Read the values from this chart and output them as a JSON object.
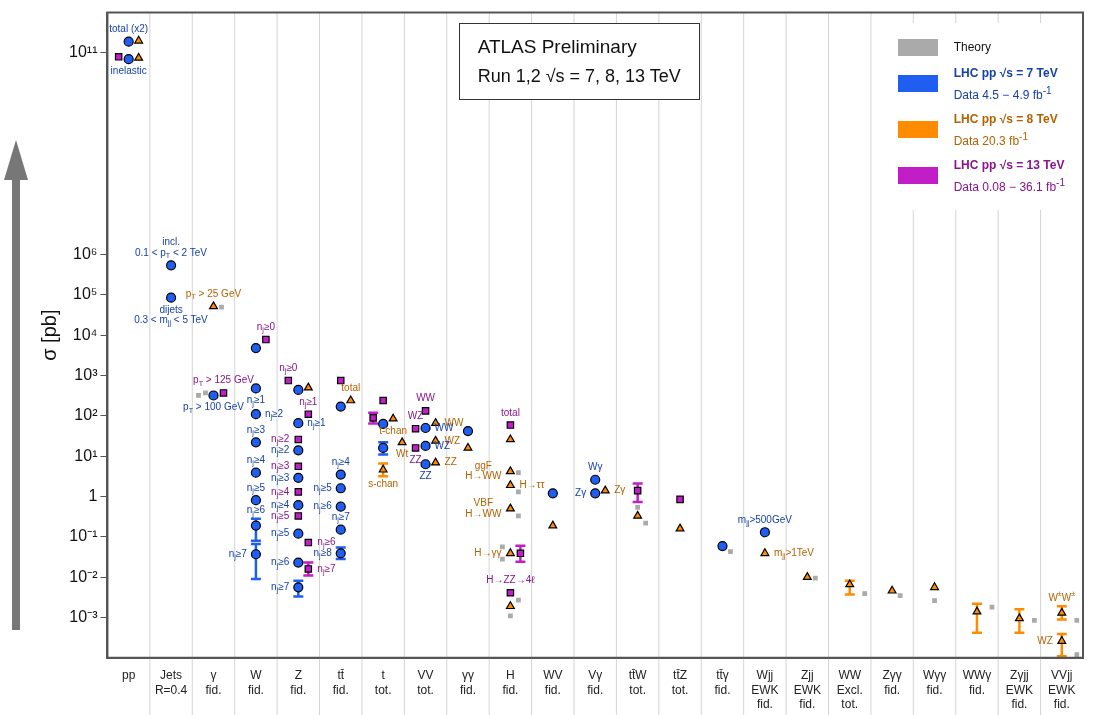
{
  "chart_data": {
    "type": "scatter",
    "title": "ATLAS Preliminary",
    "subtitle": "Run 1,2   √s = 7, 8, 13 TeV",
    "ylabel": "σ [pb]",
    "categories": [
      "pp",
      "Jets\nR=0.4",
      "γ\nfid.",
      "W\nfid.",
      "Z\nfid.",
      "tt̄\nfid.",
      "t\ntot.",
      "VV\ntot.",
      "γγ\nfid.",
      "H\nfid.",
      "WV\nfid.",
      "Vγ\nfid.",
      "tt̄W\ntot.",
      "tt̄Z\ntot.",
      "tt̄γ\nfid.",
      "Wjj\nEWK\nfid.",
      "Zjj\nEWK\nfid.",
      "WW\nExcl.\ntot.",
      "Zγγ\nfid.",
      "Wγγ\nfid.",
      "WWγ\nfid.",
      "Zγjj\nEWK\nfid.",
      "VVjj\nEWK\nfid."
    ],
    "log": "y",
    "ylim": [
      0.0001,
      1000000000000
    ],
    "yticks": [
      {
        "value": 0.001,
        "label": "10⁻³"
      },
      {
        "value": 0.01,
        "label": "10⁻²"
      },
      {
        "value": 0.1,
        "label": "10⁻¹"
      },
      1,
      {
        "value": 10,
        "label": "10¹"
      },
      {
        "value": 100,
        "label": "10²"
      },
      {
        "value": 1000,
        "label": "10³"
      },
      {
        "value": 10000,
        "label": "10⁴"
      },
      {
        "value": 100000,
        "label": "10⁵"
      },
      {
        "value": 1000000,
        "label": "10⁶"
      },
      {
        "value": 100000000000,
        "label": "10¹¹"
      }
    ],
    "grid": "x",
    "legend": "top right",
    "series": [
      {
        "name": "Theory",
        "marker": "square",
        "color": "#aaaaaa",
        "x": [
          "γ\nfid.",
          "γ\nfid.",
          "γ\nfid.",
          "H\nfid.",
          "H\nfid.",
          "H\nfid.",
          "H\nfid.",
          "H\nfid.",
          "H\nfid.",
          "H\nfid.",
          "tt̄W\ntot.",
          "tt̄W\ntot.",
          "tt̄γ\nfid.",
          "Zjj\nEWK\nfid.",
          "WW\nExcl.\ntot.",
          "Zγγ\nfid.",
          "Wγγ\nfid.",
          "WWγ\nfid.",
          "Zγjj\nEWK\nfid.",
          "VVjj\nEWK\nfid.",
          "VVjj\nEWK\nfid."
        ],
        "values": [
          50000,
          370,
          320,
          3.9,
          1.3,
          0.33,
          0.056,
          0.028,
          0.0027,
          0.0011,
          0.54,
          0.22,
          0.043,
          0.0095,
          0.0039,
          0.0035,
          0.0026,
          0.0018,
          0.00085,
          0.00085,
          0.00012
        ]
      },
      {
        "name": "LHC pp √s = 7 TeV\nData 4.5 − 4.9 fb$^{-1}$",
        "marker": "circle",
        "color": "#1f5ef0",
        "x": [
          "pp",
          "pp",
          "Jets\nR=0.4",
          "Jets\nR=0.4",
          "γ\nfid.",
          "W\nfid.",
          "W\nfid.",
          "W\nfid.",
          "W\nfid.",
          "W\nfid.",
          "W\nfid.",
          "W\nfid.",
          "W\nfid.",
          "Z\nfid.",
          "Z\nfid.",
          "Z\nfid.",
          "Z\nfid.",
          "Z\nfid.",
          "Z\nfid.",
          "Z\nfid.",
          "Z\nfid.",
          "tt̄\nfid.",
          "tt̄\nfid.",
          "tt̄\nfid.",
          "tt̄\nfid.",
          "tt̄\nfid.",
          "tt̄\nfid.",
          "t\ntot.",
          "t\ntot.",
          "VV\ntot.",
          "VV\ntot.",
          "VV\ntot.",
          "γγ\nfid.",
          "WV\nfid.",
          "Vγ\nfid.",
          "Vγ\nfid.",
          "tt̄γ\nfid.",
          "Wjj\nEWK\nfid."
        ],
        "values": [
          190000000000,
          70000000000,
          540000,
          85000,
          320,
          4800,
          480,
          110,
          22,
          3.9,
          0.81,
          0.19,
          0.037,
          440,
          66,
          14,
          2.9,
          0.61,
          0.12,
          0.023,
          0.0056,
          170,
          3.5,
          1.6,
          0.56,
          0.15,
          0.039,
          63,
          16,
          50,
          18,
          6.3,
          42,
          1.2,
          2.6,
          1.2,
          0.059,
          0.13
        ],
        "errors": [
          null,
          null,
          null,
          null,
          null,
          null,
          null,
          null,
          null,
          null,
          null,
          [
            0.08,
            0.28
          ],
          [
            0.009,
            0.066
          ],
          null,
          null,
          null,
          null,
          null,
          null,
          null,
          [
            0.0033,
            0.0081
          ],
          null,
          null,
          null,
          null,
          null,
          [
            0.028,
            0.054
          ],
          null,
          [
            11,
            22
          ],
          null,
          null,
          null,
          null,
          null,
          null,
          null,
          null,
          null
        ]
      },
      {
        "name": "LHC pp √s = 8 TeV\nData 20.3 fb$^{-1}$",
        "marker": "triangle",
        "color": "#ff8c00",
        "x": [
          "pp",
          "pp",
          "γ\nfid.",
          "Z\nfid.",
          "tt̄\nfid.",
          "t\ntot.",
          "t\ntot.",
          "t\ntot.",
          "VV\ntot.",
          "VV\ntot.",
          "VV\ntot.",
          "γγ\nfid.",
          "H\nfid.",
          "H\nfid.",
          "H\nfid.",
          "H\nfid.",
          "H\nfid.",
          "H\nfid.",
          "WV\nfid.",
          "Vγ\nfid.",
          "tt̄W\ntot.",
          "tt̄Z\ntot.",
          "Wjj\nEWK\nfid.",
          "Zjj\nEWK\nfid.",
          "WW\nExcl.\ntot.",
          "Zγγ\nfid.",
          "Wγγ\nfid.",
          "WWγ\nfid.",
          "Zγjj\nEWK\nfid.",
          "VVjj\nEWK\nfid.",
          "VVjj\nEWK\nfid."
        ],
        "values": [
          200000000000,
          75000000000,
          52000,
          500,
          240,
          85,
          22,
          4.6,
          66,
          24,
          6.9,
          16,
          26,
          4.2,
          1.9,
          0.5,
          0.039,
          0.0019,
          0.19,
          1.4,
          0.33,
          0.16,
          0.039,
          0.01,
          0.0066,
          0.0046,
          0.0056,
          0.0014,
          0.00095,
          0.0013,
          0.00026
        ],
        "errors": [
          null,
          null,
          null,
          null,
          null,
          null,
          null,
          [
            3.2,
            6.6
          ],
          null,
          null,
          null,
          null,
          null,
          null,
          null,
          null,
          null,
          null,
          null,
          null,
          null,
          null,
          null,
          null,
          [
            0.0037,
            0.0081
          ],
          null,
          null,
          [
            0.00042,
            0.0022
          ],
          [
            0.00042,
            0.0016
          ],
          [
            0.00089,
            0.0019
          ],
          [
            0.00011,
            0.00039
          ]
        ]
      },
      {
        "name": "LHC pp √s = 13 TeV\nData 0.08 − 36.1 fb$^{-1}$",
        "marker": "square",
        "color": "#c21ec8",
        "x": [
          "pp",
          "γ\nfid.",
          "W\nfid.",
          "Z\nfid.",
          "Z\nfid.",
          "Z\nfid.",
          "Z\nfid.",
          "Z\nfid.",
          "Z\nfid.",
          "Z\nfid.",
          "Z\nfid.",
          "tt̄\nfid.",
          "t\ntot.",
          "t\ntot.",
          "VV\ntot.",
          "VV\ntot.",
          "VV\ntot.",
          "H\nfid.",
          "H\nfid.",
          "H\nfid.",
          "tt̄W\ntot.",
          "tt̄Z\ntot."
        ],
        "values": [
          80000000000,
          370,
          7800,
          750,
          110,
          26,
          5.6,
          1.3,
          0.33,
          0.072,
          0.016,
          750,
          240,
          89,
          133,
          48,
          16,
          59,
          0.039,
          0.0041,
          1.4,
          0.85
        ],
        "errors": [
          null,
          null,
          null,
          null,
          null,
          null,
          null,
          null,
          null,
          null,
          [
            0.011,
            0.023
          ],
          null,
          null,
          [
            65,
            120
          ],
          null,
          null,
          null,
          null,
          [
            0.024,
            0.06
          ],
          null,
          [
            0.73,
            2.1
          ],
          null
        ]
      }
    ],
    "annotations": [
      {
        "text": "total (x2)",
        "x": "pp",
        "y": 190000000000
      },
      {
        "text": "inelastic",
        "x": "pp",
        "y": 70000000000
      },
      {
        "text": "incl.\n0.1 < p$_{T}$ < 2 TeV",
        "x": "Jets\nR=0.4",
        "y": 540000
      },
      {
        "text": "dijets\n0.3 < m$_{jj}$ < 5 TeV",
        "x": "Jets\nR=0.4",
        "y": 85000
      },
      {
        "text": "p$_{T}$ > 25 GeV",
        "x": "γ\nfid.",
        "y": 52000
      },
      {
        "text": "p$_{T}$ > 125 GeV",
        "x": "γ\nfid.",
        "y": 370
      },
      {
        "text": "p$_{T}$ > 100 GeV",
        "x": "γ\nfid.",
        "y": 320
      },
      {
        "text": "n$_{j}$≥0",
        "x": "W\nfid.",
        "y": 7800
      },
      {
        "text": "n$_{j}$≥1",
        "x": "W\nfid.",
        "y": 480
      },
      {
        "text": "n$_{j}$≥2",
        "x": "W\nfid.",
        "y": 110
      },
      {
        "text": "n$_{j}$≥3",
        "x": "W\nfid.",
        "y": 22
      },
      {
        "text": "n$_{j}$≥4",
        "x": "W\nfid.",
        "y": 3.9
      },
      {
        "text": "n$_{j}$≥5",
        "x": "W\nfid.",
        "y": 0.81
      },
      {
        "text": "n$_{j}$≥6",
        "x": "W\nfid.",
        "y": 0.19
      },
      {
        "text": "n$_{j}$≥7",
        "x": "W\nfid.",
        "y": 0.037
      },
      {
        "text": "n$_{j}$≥0",
        "x": "Z\nfid.",
        "y": 750
      },
      {
        "text": "n$_{j}$≥1",
        "x": "Z\nfid.",
        "y": 110
      },
      {
        "text": "n$_{j}$≥2",
        "x": "Z\nfid.",
        "y": 26
      },
      {
        "text": "n$_{j}$≥3",
        "x": "Z\nfid.",
        "y": 5.6
      },
      {
        "text": "n$_{j}$≥4",
        "x": "Z\nfid.",
        "y": 1.3
      },
      {
        "text": "n$_{j}$≥5",
        "x": "Z\nfid.",
        "y": 0.33
      },
      {
        "text": "n$_{j}$≥6",
        "x": "Z\nfid.",
        "y": 0.072
      },
      {
        "text": "n$_{j}$≥7",
        "x": "Z\nfid.",
        "y": 0.016
      },
      {
        "text": "n$_{j}$≥1",
        "x": "Z\nfid.",
        "y": 66
      },
      {
        "text": "n$_{j}$≥2",
        "x": "Z\nfid.",
        "y": 14
      },
      {
        "text": "n$_{j}$≥3",
        "x": "Z\nfid.",
        "y": 2.9
      },
      {
        "text": "n$_{j}$≥4",
        "x": "Z\nfid.",
        "y": 0.61
      },
      {
        "text": "n$_{j}$≥5",
        "x": "Z\nfid.",
        "y": 0.12
      },
      {
        "text": "n$_{j}$≥6",
        "x": "Z\nfid.",
        "y": 0.023
      },
      {
        "text": "n$_{j}$≥7",
        "x": "Z\nfid.",
        "y": 0.0056
      },
      {
        "text": "total",
        "x": "tt̄\nfid.",
        "y": 240
      },
      {
        "text": "n$_{j}$≥4",
        "x": "tt̄\nfid.",
        "y": 3.5
      },
      {
        "text": "n$_{j}$≥5",
        "x": "tt̄\nfid.",
        "y": 1.6
      },
      {
        "text": "n$_{j}$≥6",
        "x": "tt̄\nfid.",
        "y": 0.56
      },
      {
        "text": "n$_{j}$≥7",
        "x": "tt̄\nfid.",
        "y": 0.15
      },
      {
        "text": "n$_{j}$≥8",
        "x": "tt̄\nfid.",
        "y": 0.039
      },
      {
        "text": "t-chan",
        "x": "t\ntot.",
        "y": 85
      },
      {
        "text": "Wt",
        "x": "t\ntot.",
        "y": 22
      },
      {
        "text": "s-chan",
        "x": "t\ntot.",
        "y": 4.6
      },
      {
        "text": "WW",
        "x": "VV\ntot.",
        "y": 133
      },
      {
        "text": "WZ",
        "x": "VV\ntot.",
        "y": 48
      },
      {
        "text": "ZZ",
        "x": "VV\ntot.",
        "y": 16
      },
      {
        "text": "WW",
        "x": "VV\ntot.",
        "y": 66
      },
      {
        "text": "WZ",
        "x": "VV\ntot.",
        "y": 24
      },
      {
        "text": "ZZ",
        "x": "VV\ntot.",
        "y": 6.9
      },
      {
        "text": "WW",
        "x": "VV\ntot.",
        "y": 50
      },
      {
        "text": "WZ",
        "x": "VV\ntot.",
        "y": 18
      },
      {
        "text": "ZZ",
        "x": "VV\ntot.",
        "y": 6.3
      },
      {
        "text": "total",
        "x": "H\nfid.",
        "y": 59
      },
      {
        "text": "ggF\nH→WW",
        "x": "H\nfid.",
        "y": 4.2
      },
      {
        "text": "H→ττ",
        "x": "H\nfid.",
        "y": 1.9
      },
      {
        "text": "VBF\nH→WW",
        "x": "H\nfid.",
        "y": 0.5
      },
      {
        "text": "H→γγ",
        "x": "H\nfid.",
        "y": 0.039
      },
      {
        "text": "H→ZZ→4ℓ",
        "x": "H\nfid.",
        "y": 0.0041
      },
      {
        "text": "Zγ",
        "x": "Vγ\nfid.",
        "y": 1.4
      },
      {
        "text": "Wγ",
        "x": "Vγ\nfid.",
        "y": 2.6
      },
      {
        "text": "Zγ",
        "x": "Vγ\nfid.",
        "y": 1.2
      },
      {
        "text": "m$_{jj}$>500GeV",
        "x": "Wjj\nEWK\nfid.",
        "y": 0.13
      },
      {
        "text": "m$_{jj}$>1TeV",
        "x": "Wjj\nEWK\nfid.",
        "y": 0.039
      },
      {
        "text": "W$^{±}$W$^{±}$",
        "x": "VVjj\nEWK\nfid.",
        "y": 0.0013
      },
      {
        "text": "WZ",
        "x": "VVjj\nEWK\nfid.",
        "y": 0.00026
      }
    ]
  }
}
